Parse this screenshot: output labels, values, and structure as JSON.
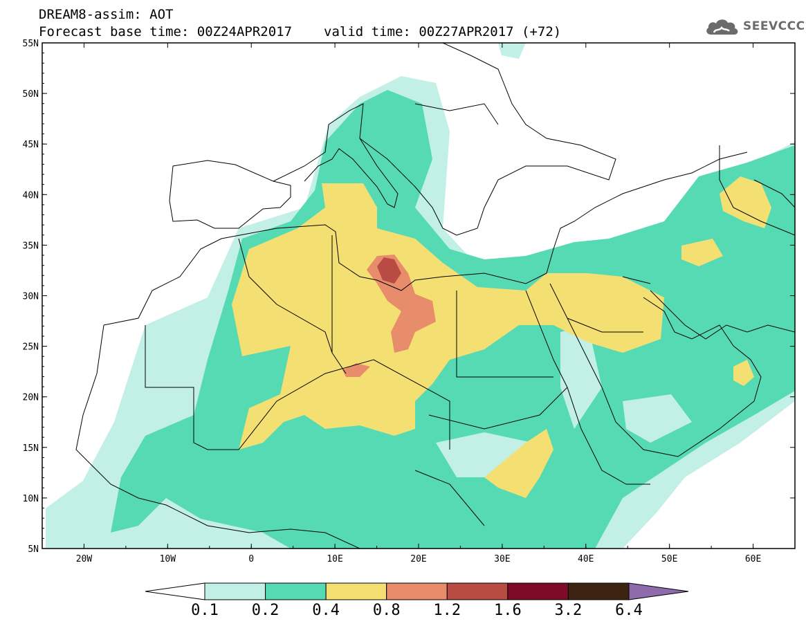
{
  "title": {
    "line1": "DREAM8-assim: AOT",
    "base": "Forecast base time: 00Z24APR2017",
    "valid": "valid time: 00Z27APR2017 (+72)"
  },
  "logo": {
    "text": "SEEVCCC",
    "icon": "cloud-logo-icon"
  },
  "map": {
    "lon_range": [
      -25,
      65
    ],
    "lat_range": [
      5,
      55
    ],
    "lat_labels": [
      "55N",
      "50N",
      "45N",
      "40N",
      "35N",
      "30N",
      "25N",
      "20N",
      "15N",
      "10N",
      "5N"
    ],
    "lon_labels": [
      "20W",
      "10W",
      "0",
      "10E",
      "20E",
      "30E",
      "40E",
      "50E",
      "60E"
    ]
  },
  "colorbar": {
    "colors": [
      "#ffffff",
      "#c2efe6",
      "#56dab4",
      "#f4e072",
      "#e88d6b",
      "#b84b44",
      "#7e0c28",
      "#3d2412",
      "#8f6bab"
    ],
    "labels": [
      "0.1",
      "0.2",
      "0.4",
      "0.8",
      "1.2",
      "1.6",
      "3.2",
      "6.4"
    ]
  }
}
